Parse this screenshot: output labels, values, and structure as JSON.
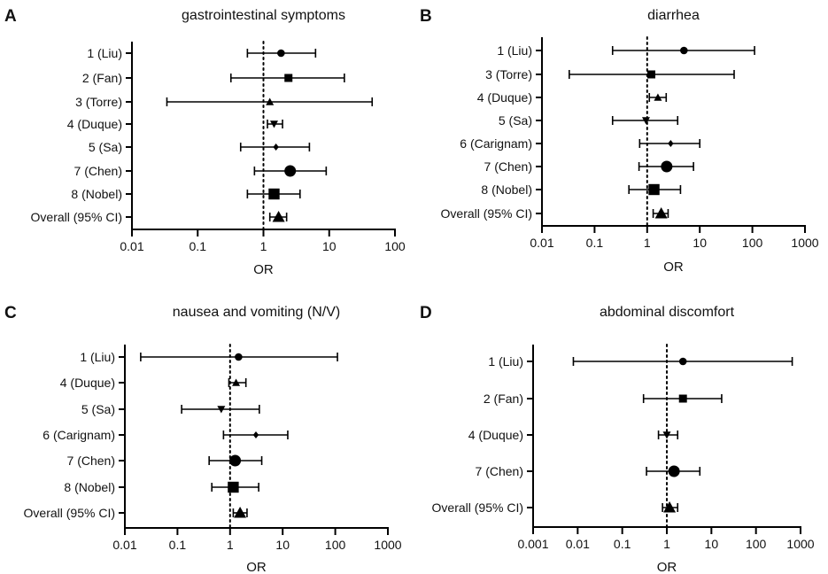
{
  "chart_data": [
    {
      "type": "forest",
      "letter": "A",
      "title": "gastrointestinal symptoms",
      "xlabel": "OR",
      "xscale": "log",
      "xlim": [
        0.01,
        100
      ],
      "xticks": [
        "0.01",
        "0.1",
        "1",
        "10",
        "100"
      ],
      "reference_line": 1,
      "rows": [
        {
          "label": "1 (Liu)",
          "or": 1.85,
          "lo": 0.57,
          "hi": 6.2,
          "marker": "circle"
        },
        {
          "label": "2 (Fan)",
          "or": 2.4,
          "lo": 0.32,
          "hi": 17,
          "marker": "square"
        },
        {
          "label": "3 (Torre)",
          "or": 1.25,
          "lo": 0.034,
          "hi": 45,
          "marker": "triangle-up"
        },
        {
          "label": "4 (Duque)",
          "or": 1.45,
          "lo": 1.15,
          "hi": 1.95,
          "marker": "triangle-down"
        },
        {
          "label": "5 (Sa)",
          "or": 1.55,
          "lo": 0.45,
          "hi": 5.0,
          "marker": "diamond"
        },
        {
          "label": "7 (Chen)",
          "or": 2.55,
          "lo": 0.73,
          "hi": 9.0,
          "marker": "circle-big"
        },
        {
          "label": "8 (Nobel)",
          "or": 1.45,
          "lo": 0.57,
          "hi": 3.6,
          "marker": "square-big"
        },
        {
          "label": "Overall (95% CI)",
          "or": 1.7,
          "lo": 1.25,
          "hi": 2.25,
          "marker": "triangle-big"
        }
      ]
    },
    {
      "type": "forest",
      "letter": "B",
      "title": "diarrhea",
      "xlabel": "OR",
      "xscale": "log",
      "xlim": [
        0.01,
        1000
      ],
      "xticks": [
        "0.01",
        "0.1",
        "1",
        "10",
        "100",
        "1000"
      ],
      "reference_line": 1,
      "rows": [
        {
          "label": "1 (Liu)",
          "or": 5.0,
          "lo": 0.22,
          "hi": 110,
          "marker": "circle"
        },
        {
          "label": "3 (Torre)",
          "or": 1.2,
          "lo": 0.033,
          "hi": 45,
          "marker": "square"
        },
        {
          "label": "4 (Duque)",
          "or": 1.6,
          "lo": 1.1,
          "hi": 2.3,
          "marker": "triangle-up"
        },
        {
          "label": "5 (Sa)",
          "or": 0.95,
          "lo": 0.22,
          "hi": 3.8,
          "marker": "triangle-down"
        },
        {
          "label": "6 (Carignam)",
          "or": 2.8,
          "lo": 0.72,
          "hi": 10,
          "marker": "diamond"
        },
        {
          "label": "7 (Chen)",
          "or": 2.35,
          "lo": 0.7,
          "hi": 7.6,
          "marker": "circle-big"
        },
        {
          "label": "8 (Nobel)",
          "or": 1.35,
          "lo": 0.45,
          "hi": 4.3,
          "marker": "square-big"
        },
        {
          "label": "Overall (95% CI)",
          "or": 1.85,
          "lo": 1.3,
          "hi": 2.5,
          "marker": "triangle-big"
        }
      ]
    },
    {
      "type": "forest",
      "letter": "C",
      "title": "nausea and vomiting (N/V)",
      "xlabel": "OR",
      "xscale": "log",
      "xlim": [
        0.01,
        1000
      ],
      "xticks": [
        "0.01",
        "0.1",
        "1",
        "10",
        "100",
        "1000"
      ],
      "reference_line": 1,
      "rows": [
        {
          "label": "1 (Liu)",
          "or": 1.45,
          "lo": 0.02,
          "hi": 110,
          "marker": "circle"
        },
        {
          "label": "4 (Duque)",
          "or": 1.3,
          "lo": 0.95,
          "hi": 2.0,
          "marker": "triangle-up"
        },
        {
          "label": "5 (Sa)",
          "or": 0.68,
          "lo": 0.12,
          "hi": 3.6,
          "marker": "triangle-down"
        },
        {
          "label": "6 (Carignam)",
          "or": 3.1,
          "lo": 0.75,
          "hi": 12.5,
          "marker": "diamond"
        },
        {
          "label": "7 (Chen)",
          "or": 1.25,
          "lo": 0.4,
          "hi": 4.0,
          "marker": "circle-big"
        },
        {
          "label": "8 (Nobel)",
          "or": 1.15,
          "lo": 0.45,
          "hi": 3.5,
          "marker": "square-big"
        },
        {
          "label": "Overall (95% CI)",
          "or": 1.55,
          "lo": 1.15,
          "hi": 2.1,
          "marker": "triangle-big"
        }
      ]
    },
    {
      "type": "forest",
      "letter": "D",
      "title": "abdominal discomfort",
      "xlabel": "OR",
      "xscale": "log",
      "xlim": [
        0.001,
        1000
      ],
      "xticks": [
        "0.001",
        "0.01",
        "0.1",
        "1",
        "10",
        "100",
        "1000"
      ],
      "reference_line": 1,
      "rows": [
        {
          "label": "1 (Liu)",
          "or": 2.3,
          "lo": 0.008,
          "hi": 650,
          "marker": "circle"
        },
        {
          "label": "2 (Fan)",
          "or": 2.3,
          "lo": 0.3,
          "hi": 17,
          "marker": "square"
        },
        {
          "label": "4 (Duque)",
          "or": 1.0,
          "lo": 0.65,
          "hi": 1.75,
          "marker": "triangle-down"
        },
        {
          "label": "7 (Chen)",
          "or": 1.45,
          "lo": 0.35,
          "hi": 5.5,
          "marker": "circle-big"
        },
        {
          "label": "Overall (95% CI)",
          "or": 1.15,
          "lo": 0.8,
          "hi": 1.75,
          "marker": "triangle-big"
        }
      ]
    }
  ]
}
